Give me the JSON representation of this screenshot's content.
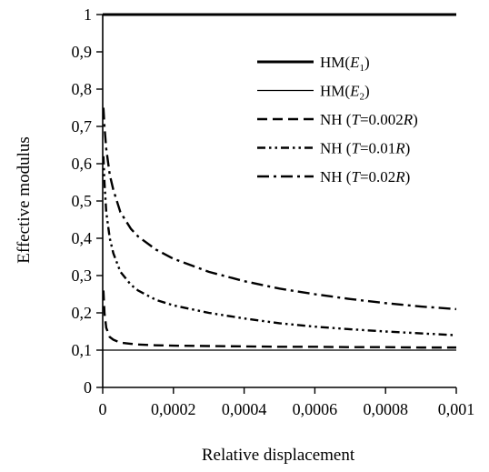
{
  "chart_data": {
    "type": "line",
    "xlabel": "Relative displacement",
    "ylabel": "Effective modulus",
    "xlim": [
      0,
      0.001
    ],
    "ylim": [
      0,
      1
    ],
    "x_ticks": [
      "0",
      "0,0002",
      "0,0004",
      "0,0006",
      "0,0008",
      "0,001"
    ],
    "x_tick_values": [
      0,
      0.0002,
      0.0004,
      0.0006,
      0.0008,
      0.001
    ],
    "y_ticks": [
      "0",
      "0,1",
      "0,2",
      "0,3",
      "0,4",
      "0,5",
      "0,6",
      "0,7",
      "0,8",
      "0,9",
      "1"
    ],
    "y_tick_values": [
      0,
      0.1,
      0.2,
      0.3,
      0.4,
      0.5,
      0.6,
      0.7,
      0.8,
      0.9,
      1
    ],
    "grid": false,
    "legend_position": "top-right",
    "series": [
      {
        "name": "HM(E1)",
        "legend": {
          "pre": "HM(",
          "var": "E",
          "sub": "1",
          "post": ")"
        },
        "style": "thick-solid",
        "x": [
          0,
          0.001
        ],
        "y": [
          1,
          1
        ]
      },
      {
        "name": "HM(E2)",
        "legend": {
          "pre": "HM(",
          "var": "E",
          "sub": "2",
          "post": ")"
        },
        "style": "thin-solid",
        "x": [
          0,
          0.001
        ],
        "y": [
          0.1,
          0.1
        ]
      },
      {
        "name": "NH (T=0.002R)",
        "legend": {
          "pre": "NH (",
          "var": "T",
          "mid": "=0.002",
          "var2": "R",
          "post": ")"
        },
        "style": "dash",
        "x": [
          2e-06,
          5e-06,
          1e-05,
          2e-05,
          3e-05,
          5e-05,
          8e-05,
          0.0001,
          0.00015,
          0.0002,
          0.0003,
          0.0004,
          0.0005,
          0.0006,
          0.0007,
          0.0008,
          0.0009,
          0.001
        ],
        "y": [
          0.26,
          0.2,
          0.16,
          0.135,
          0.128,
          0.12,
          0.117,
          0.115,
          0.113,
          0.112,
          0.111,
          0.11,
          0.109,
          0.109,
          0.108,
          0.108,
          0.107,
          0.107
        ]
      },
      {
        "name": "NH (T=0.01R)",
        "legend": {
          "pre": "NH (",
          "var": "T",
          "mid": "=0.01",
          "var2": "R",
          "post": ")"
        },
        "style": "dash-dot-dot",
        "x": [
          2e-06,
          5e-06,
          1e-05,
          2e-05,
          3e-05,
          5e-05,
          8e-05,
          0.0001,
          0.00015,
          0.0002,
          0.0003,
          0.0004,
          0.0005,
          0.0006,
          0.0007,
          0.0008,
          0.0009,
          0.001
        ],
        "y": [
          0.62,
          0.55,
          0.47,
          0.4,
          0.36,
          0.31,
          0.275,
          0.26,
          0.235,
          0.22,
          0.2,
          0.185,
          0.172,
          0.163,
          0.156,
          0.15,
          0.145,
          0.14
        ]
      },
      {
        "name": "NH (T=0.02R)",
        "legend": {
          "pre": "NH (",
          "var": "T",
          "mid": "=0.02",
          "var2": "R",
          "post": ")"
        },
        "style": "dash-dot",
        "x": [
          2e-06,
          5e-06,
          1e-05,
          2e-05,
          3e-05,
          5e-05,
          8e-05,
          0.0001,
          0.00015,
          0.0002,
          0.0003,
          0.0004,
          0.0005,
          0.0006,
          0.0007,
          0.0008,
          0.0009,
          0.001
        ],
        "y": [
          0.75,
          0.7,
          0.64,
          0.57,
          0.53,
          0.47,
          0.425,
          0.405,
          0.37,
          0.345,
          0.31,
          0.285,
          0.265,
          0.25,
          0.237,
          0.226,
          0.217,
          0.21
        ]
      }
    ]
  }
}
